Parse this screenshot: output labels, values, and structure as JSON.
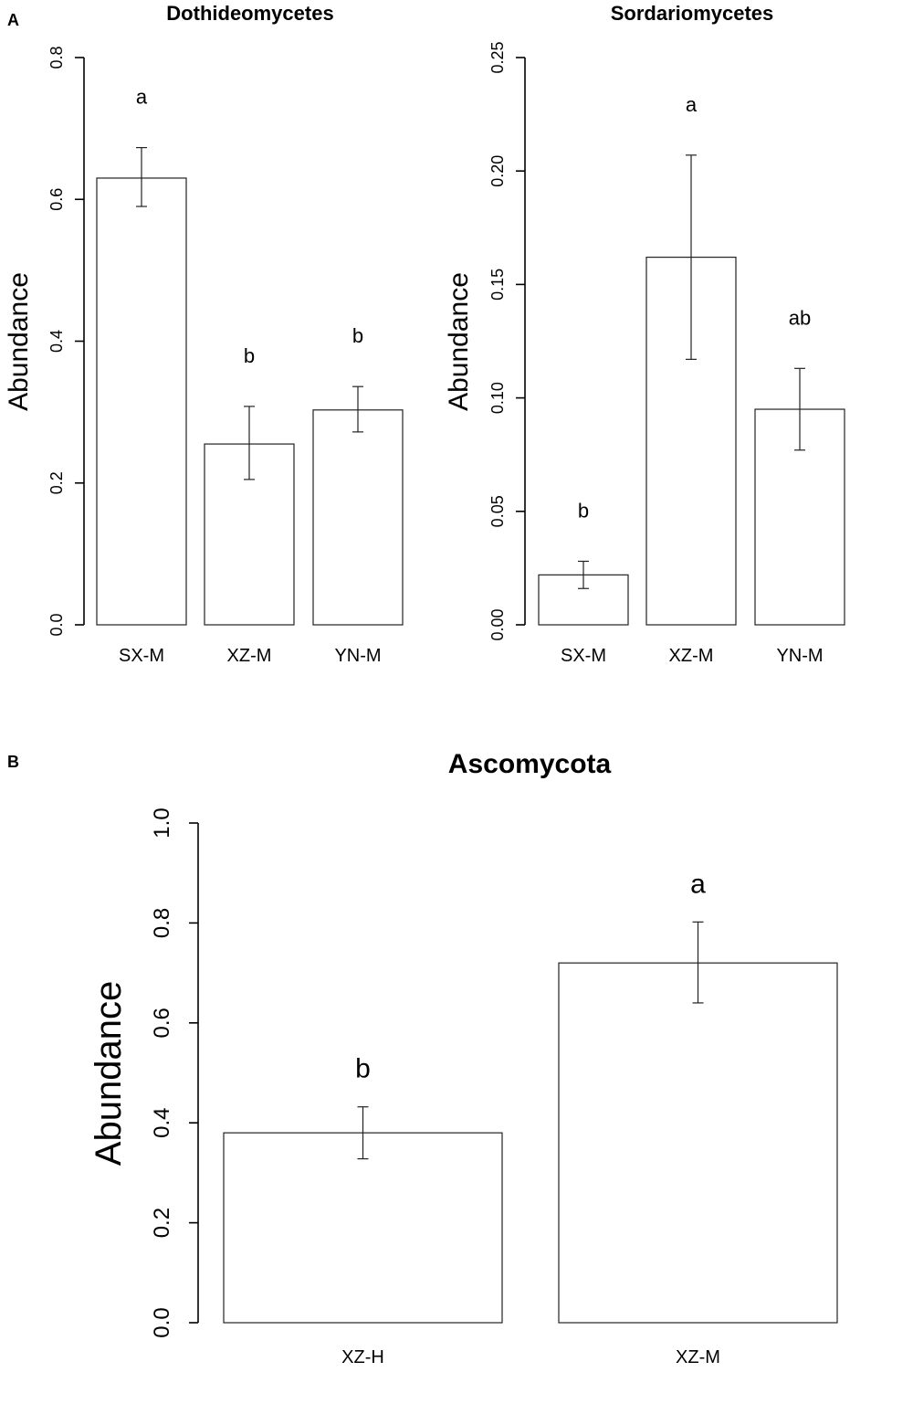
{
  "panels": {
    "A": {
      "label": "A"
    },
    "B": {
      "label": "B"
    }
  },
  "chart_data": [
    {
      "type": "bar",
      "panel": "A",
      "title": "Dothideomycetes",
      "xlabel": "",
      "ylabel": "Abundance",
      "categories": [
        "SX-M",
        "XZ-M",
        "YN-M"
      ],
      "values": [
        0.63,
        0.255,
        0.303
      ],
      "errors": [
        [
          0.59,
          0.673
        ],
        [
          0.205,
          0.308
        ],
        [
          0.272,
          0.336
        ]
      ],
      "significance": [
        "a",
        "b",
        "b"
      ],
      "ylim": [
        0,
        0.8
      ],
      "yticks": [
        "0.0",
        "0.2",
        "0.4",
        "0.6",
        "0.8"
      ],
      "ytick_values": [
        0,
        0.2,
        0.4,
        0.6,
        0.8
      ]
    },
    {
      "type": "bar",
      "panel": "A",
      "title": "Sordariomycetes",
      "xlabel": "",
      "ylabel": "Abundance",
      "categories": [
        "SX-M",
        "XZ-M",
        "YN-M"
      ],
      "values": [
        0.022,
        0.162,
        0.095
      ],
      "errors": [
        [
          0.016,
          0.028
        ],
        [
          0.117,
          0.207
        ],
        [
          0.077,
          0.113
        ]
      ],
      "significance": [
        "b",
        "a",
        "ab"
      ],
      "ylim": [
        0,
        0.25
      ],
      "yticks": [
        "0.00",
        "0.05",
        "0.10",
        "0.15",
        "0.20",
        "0.25"
      ],
      "ytick_values": [
        0,
        0.05,
        0.1,
        0.15,
        0.2,
        0.25
      ]
    },
    {
      "type": "bar",
      "panel": "B",
      "title": "Ascomycota",
      "xlabel": "",
      "ylabel": "Abundance",
      "categories": [
        "XZ-H",
        "XZ-M"
      ],
      "values": [
        0.38,
        0.72
      ],
      "errors": [
        [
          0.328,
          0.432
        ],
        [
          0.64,
          0.802
        ]
      ],
      "significance": [
        "b",
        "a"
      ],
      "ylim": [
        0,
        1.0
      ],
      "yticks": [
        "0.0",
        "0.2",
        "0.4",
        "0.6",
        "0.8",
        "1.0"
      ],
      "ytick_values": [
        0,
        0.2,
        0.4,
        0.6,
        0.8,
        1.0
      ]
    }
  ]
}
